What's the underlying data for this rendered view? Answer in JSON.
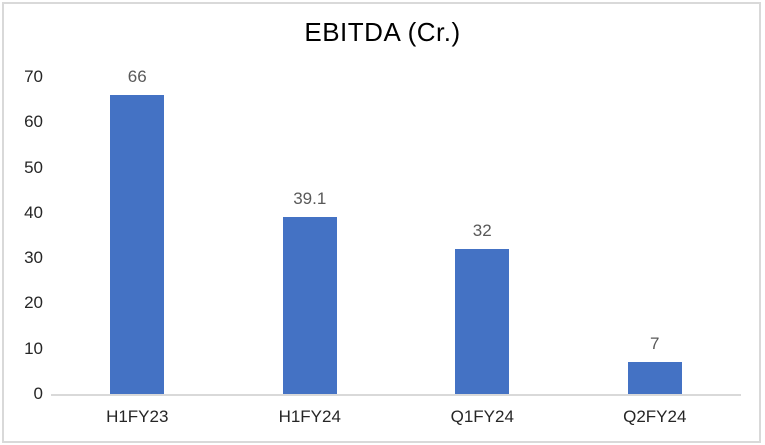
{
  "chart_data": {
    "type": "bar",
    "title": "EBITDA (Cr.)",
    "categories": [
      "H1FY23",
      "H1FY24",
      "Q1FY24",
      "Q2FY24"
    ],
    "values": [
      66,
      39.1,
      32,
      7
    ],
    "data_labels": [
      "66",
      "39.1",
      "32",
      "7"
    ],
    "xlabel": "",
    "ylabel": "",
    "ylim": [
      0,
      70
    ],
    "ytick_interval": 10,
    "yticks": [
      0,
      10,
      20,
      30,
      40,
      50,
      60,
      70
    ],
    "grid": false,
    "legend_position": "none",
    "bar_color": "#4472C4",
    "data_label_color": "#595959",
    "axis_text_color": "#262626",
    "axis_line_color": "#D9D9D9",
    "frame_border_color": "#D9D9D9",
    "background_color": "#FFFFFF"
  }
}
